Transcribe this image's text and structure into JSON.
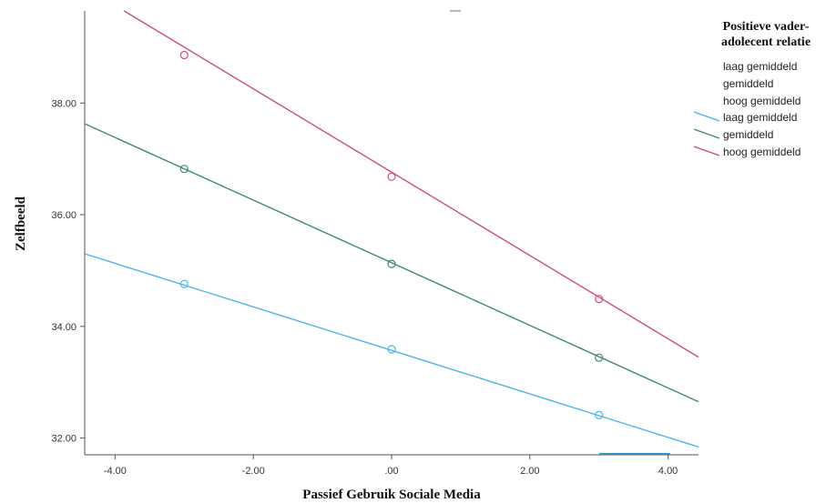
{
  "chart_data": {
    "type": "line",
    "title": "",
    "xlabel": "Passief Gebruik Sociale Media",
    "ylabel": "Zelfbeeld",
    "xlim": [
      -4.44,
      4.44
    ],
    "ylim": [
      31.7,
      39.65
    ],
    "x_ticks": [
      -4.0,
      -2.0,
      0.0,
      2.0,
      4.0
    ],
    "x_tick_labels": [
      "-4.00",
      "-2.00",
      ".00",
      "2.00",
      "4.00"
    ],
    "y_ticks": [
      32.0,
      34.0,
      36.0,
      38.0
    ],
    "y_tick_labels": [
      "32.00",
      "34.00",
      "36.00",
      "38.00"
    ],
    "grid": false,
    "legend": {
      "title_lines": [
        "Positieve vader-",
        "adolecent relatie"
      ],
      "placement": "top-right",
      "marker_entries": [
        "laag gemiddeld",
        "gemiddeld",
        "hoog gemiddeld"
      ]
    },
    "series": [
      {
        "name": "laag gemiddeld",
        "color": "#4fb3e6",
        "line_x": [
          -4.44,
          4.44
        ],
        "line_y": [
          35.3,
          31.84
        ],
        "points": [
          {
            "x": -3.0,
            "y": 34.76
          },
          {
            "x": 0.0,
            "y": 33.59
          },
          {
            "x": 3.0,
            "y": 32.41
          }
        ]
      },
      {
        "name": "gemiddeld",
        "color": "#3f8a76",
        "line_x": [
          -4.44,
          4.44
        ],
        "line_y": [
          37.63,
          32.65
        ],
        "points": [
          {
            "x": -3.0,
            "y": 36.82
          },
          {
            "x": 0.0,
            "y": 35.12
          },
          {
            "x": 3.0,
            "y": 33.44
          }
        ]
      },
      {
        "name": "hoog gemiddeld",
        "color": "#c94d7c",
        "line_x": [
          -3.87,
          4.44
        ],
        "line_y": [
          39.65,
          33.45
        ],
        "points": [
          {
            "x": -3.0,
            "y": 38.86
          },
          {
            "x": 0.0,
            "y": 36.68
          },
          {
            "x": 3.0,
            "y": 34.49
          }
        ]
      }
    ]
  }
}
